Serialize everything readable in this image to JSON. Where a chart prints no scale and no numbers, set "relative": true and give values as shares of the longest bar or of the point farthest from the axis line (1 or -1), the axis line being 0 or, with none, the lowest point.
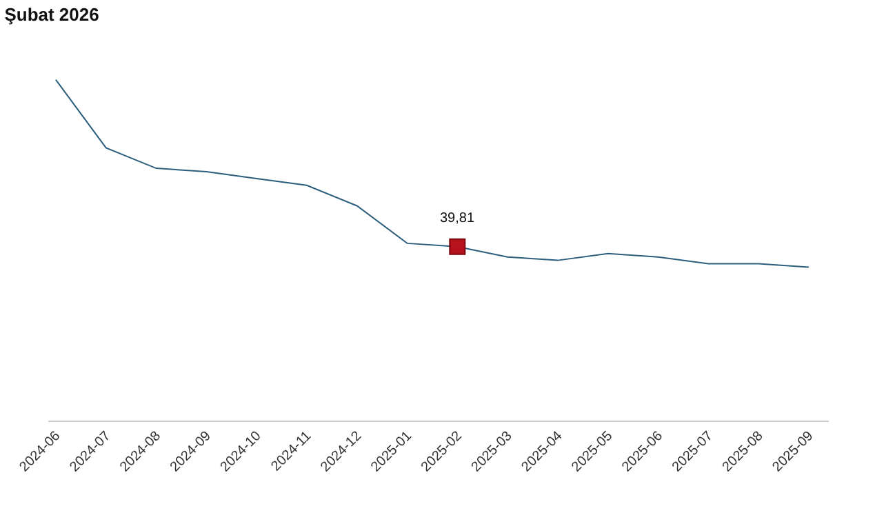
{
  "chart_data": {
    "type": "line",
    "title": "Şubat 2026",
    "relative": true,
    "categories": [
      "2024-06",
      "2024-07",
      "2024-08",
      "2024-09",
      "2024-10",
      "2024-11",
      "2024-12",
      "2025-01",
      "2025-02",
      "2025-03",
      "2025-04",
      "2025-05",
      "2025-06",
      "2025-07",
      "2025-08",
      "2025-09"
    ],
    "series": [
      {
        "color": "#2b5d7c",
        "marker": "none",
        "values": [
          1.0,
          0.8,
          0.74,
          0.73,
          0.71,
          0.69,
          0.63,
          0.52,
          0.51,
          0.48,
          0.47,
          0.49,
          0.48,
          0.46,
          0.46,
          0.45
        ]
      },
      {
        "type": "scatter",
        "color": "#b5121b",
        "marker": "square",
        "values": [
          null,
          null,
          null,
          null,
          null,
          null,
          null,
          null,
          0.51,
          null,
          null,
          null,
          null,
          null,
          null,
          null
        ]
      }
    ],
    "annotations": [
      {
        "text": "39,81",
        "x": "2025-02",
        "y": 0.51
      }
    ]
  }
}
